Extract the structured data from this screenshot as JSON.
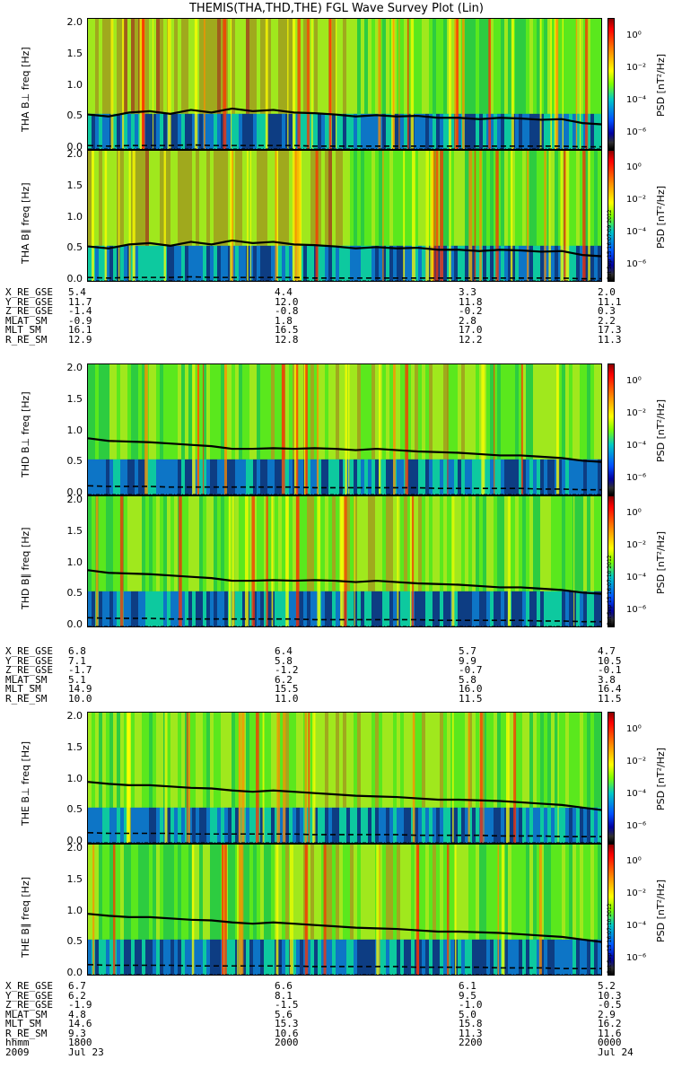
{
  "title": "THEMIS(THA,THD,THE) FGL Wave Survey Plot (Lin)",
  "colorbar": {
    "label": "PSD [nT²/Hz]",
    "ticks": [
      "10⁰",
      "10⁻²",
      "10⁻⁴",
      "10⁻⁶"
    ],
    "colors": [
      "#000000",
      "#0000a0",
      "#0050ff",
      "#00c8c8",
      "#7fff00",
      "#ffff00",
      "#ff8c00",
      "#ff0000",
      "#8b0000"
    ]
  },
  "ytick_labels": [
    "2.0",
    "1.5",
    "1.0",
    "0.5",
    "0.0"
  ],
  "chart_data": [
    {
      "type": "heatmap",
      "probe": "THA",
      "stamp": "Sat Sep 15 16:07:09 2012",
      "panels": [
        {
          "ylabel": "THA B⊥  freq [Hz]",
          "ylim": [
            0,
            2.0
          ]
        },
        {
          "ylabel": "THA B∥  freq [Hz]",
          "ylim": [
            0,
            2.0
          ]
        }
      ],
      "gyro_line_hz": [
        0.55,
        0.52,
        0.58,
        0.6,
        0.56,
        0.62,
        0.58,
        0.64,
        0.6,
        0.62,
        0.58,
        0.57,
        0.55,
        0.52,
        0.54,
        0.52,
        0.53,
        0.5,
        0.5,
        0.48,
        0.5,
        0.49,
        0.47,
        0.48,
        0.42,
        0.4
      ],
      "dashed_line_hz": [
        0.08,
        0.07,
        0.08,
        0.08,
        0.08,
        0.09,
        0.08,
        0.08,
        0.08,
        0.08,
        0.08,
        0.07,
        0.07,
        0.07,
        0.07,
        0.07,
        0.07,
        0.07,
        0.07,
        0.07,
        0.07,
        0.07,
        0.07,
        0.07,
        0.06,
        0.06
      ],
      "ephemeris": {
        "labels": [
          "X_RE_GSE",
          "Y_RE_GSE",
          "Z_RE_GSE",
          "MLAT_SM",
          "MLT_SM",
          "R_RE_SM"
        ],
        "values": [
          [
            "5.4",
            "4.4",
            "3.3",
            "2.0"
          ],
          [
            "11.7",
            "12.0",
            "11.8",
            "11.1"
          ],
          [
            "-1.4",
            "-0.8",
            "-0.2",
            "0.3"
          ],
          [
            "-0.9",
            "1.8",
            "2.8",
            "2.2"
          ],
          [
            "16.1",
            "16.5",
            "17.0",
            "17.3"
          ],
          [
            "12.9",
            "12.8",
            "12.2",
            "11.3"
          ]
        ]
      }
    },
    {
      "type": "heatmap",
      "probe": "THD",
      "stamp": "Sat Sep 15 16:07:10 2012",
      "panels": [
        {
          "ylabel": "THD B⊥  freq [Hz]",
          "ylim": [
            0,
            2.0
          ]
        },
        {
          "ylabel": "THD B∥  freq [Hz]",
          "ylim": [
            0,
            2.0
          ]
        }
      ],
      "gyro_line_hz": [
        0.88,
        0.84,
        0.83,
        0.82,
        0.8,
        0.78,
        0.76,
        0.72,
        0.72,
        0.73,
        0.72,
        0.73,
        0.72,
        0.7,
        0.72,
        0.7,
        0.68,
        0.67,
        0.66,
        0.64,
        0.62,
        0.62,
        0.6,
        0.58,
        0.54,
        0.52
      ],
      "dashed_line_hz": [
        0.16,
        0.15,
        0.15,
        0.15,
        0.14,
        0.14,
        0.14,
        0.14,
        0.14,
        0.14,
        0.14,
        0.13,
        0.13,
        0.13,
        0.13,
        0.13,
        0.13,
        0.12,
        0.12,
        0.12,
        0.12,
        0.12,
        0.11,
        0.11,
        0.1,
        0.1
      ],
      "ephemeris": {
        "labels": [
          "X_RE_GSE",
          "Y_RE_GSE",
          "Z_RE_GSE",
          "MLAT_SM",
          "MLT_SM",
          "R_RE_SM"
        ],
        "values": [
          [
            "6.8",
            "6.4",
            "5.7",
            "4.7"
          ],
          [
            "7.1",
            "5.8",
            "9.9",
            "10.5"
          ],
          [
            "-1.7",
            "-1.2",
            "-0.7",
            "-0.1"
          ],
          [
            "5.1",
            "6.2",
            "5.8",
            "3.8"
          ],
          [
            "14.9",
            "15.5",
            "16.0",
            "16.4"
          ],
          [
            "10.0",
            "11.0",
            "11.5",
            "11.5"
          ]
        ]
      }
    },
    {
      "type": "heatmap",
      "probe": "THE",
      "stamp": "Sat Sep 15 16:07:10 2012",
      "panels": [
        {
          "ylabel": "THE B⊥  freq [Hz]",
          "ylim": [
            0,
            2.0
          ]
        },
        {
          "ylabel": "THE B∥  freq [Hz]",
          "ylim": [
            0,
            2.0
          ]
        }
      ],
      "gyro_line_hz": [
        0.95,
        0.92,
        0.9,
        0.9,
        0.88,
        0.86,
        0.85,
        0.82,
        0.8,
        0.82,
        0.8,
        0.78,
        0.76,
        0.74,
        0.73,
        0.72,
        0.7,
        0.68,
        0.68,
        0.67,
        0.66,
        0.64,
        0.62,
        0.6,
        0.56,
        0.52
      ],
      "dashed_line_hz": [
        0.18,
        0.17,
        0.17,
        0.17,
        0.17,
        0.16,
        0.16,
        0.16,
        0.16,
        0.16,
        0.16,
        0.15,
        0.15,
        0.15,
        0.15,
        0.15,
        0.14,
        0.14,
        0.14,
        0.14,
        0.13,
        0.13,
        0.13,
        0.12,
        0.12,
        0.12
      ],
      "ephemeris": {
        "labels": [
          "X_RE_GSE",
          "Y_RE_GSE",
          "Z_RE_GSE",
          "MLAT_SM",
          "MLT_SM",
          "R_RE_SM",
          "hhmm",
          "2009"
        ],
        "values": [
          [
            "6.7",
            "6.6",
            "6.1",
            "5.2"
          ],
          [
            "6.2",
            "8.1",
            "9.5",
            "10.3"
          ],
          [
            "-1.9",
            "-1.5",
            "-1.0",
            "-0.5"
          ],
          [
            "4.8",
            "5.6",
            "5.0",
            "2.9"
          ],
          [
            "14.6",
            "15.3",
            "15.8",
            "16.2"
          ],
          [
            "9.3",
            "10.6",
            "11.3",
            "11.6"
          ],
          [
            "1800",
            "2000",
            "2200",
            "0000"
          ],
          [
            "Jul 23",
            "",
            "",
            "Jul 24"
          ]
        ]
      }
    }
  ]
}
